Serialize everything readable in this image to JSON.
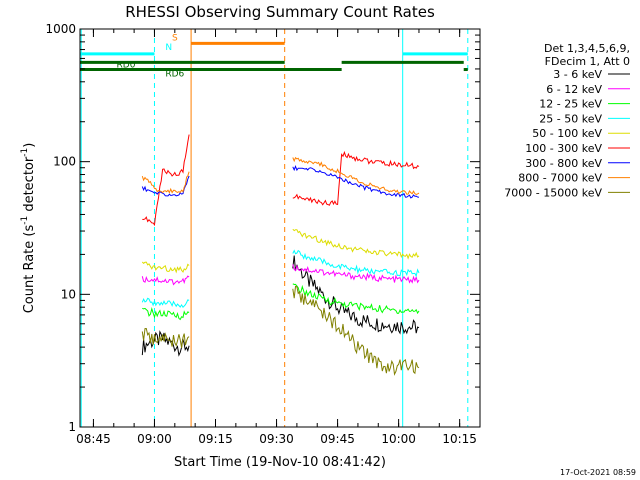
{
  "chart_data": {
    "type": "line",
    "title": "RHESSI Observing Summary Count Rates",
    "xlabel": "Start Time (19-Nov-10 08:41:42)",
    "ylabel_main": "Count Rate (s",
    "ylabel_sup1": "-1",
    "ylabel_mid": " detector",
    "ylabel_sup2": "-1",
    "ylabel_end": ")",
    "y_scale": "log",
    "ylim": [
      1,
      1000
    ],
    "xlim": [
      "08:41:42",
      "10:20:00"
    ],
    "x_ticks": [
      "08:45",
      "09:00",
      "09:15",
      "09:30",
      "09:45",
      "10:00",
      "10:15"
    ],
    "y_ticks": [
      "1",
      "10",
      "100",
      "1000"
    ],
    "legend_header": [
      "Det 1,3,4,5,6,9,",
      "FDecim 1, Att 0"
    ],
    "legend_position": "right",
    "timestamp": "17-Oct-2021 08:59",
    "series": [
      {
        "name": "3 - 6 keV",
        "color": "#000000",
        "points": [
          [
            "08:57:00",
            4.0
          ],
          [
            "08:59:00",
            4.4
          ],
          [
            "09:02:00",
            4.6
          ],
          [
            "09:06:00",
            4.0
          ],
          [
            "09:08:30",
            4.1
          ],
          [
            "09:34:00",
            18.0
          ],
          [
            "09:38:00",
            12.5
          ],
          [
            "09:42:00",
            9.5
          ],
          [
            "09:46:00",
            7.5
          ],
          [
            "09:50:00",
            6.5
          ],
          [
            "09:55:00",
            6.0
          ],
          [
            "10:00:00",
            5.8
          ],
          [
            "10:05:00",
            5.6
          ]
        ]
      },
      {
        "name": "6 - 12 keV",
        "color": "#ff00ff",
        "points": [
          [
            "08:57:00",
            13.0
          ],
          [
            "09:00:00",
            13.0
          ],
          [
            "09:04:00",
            12.5
          ],
          [
            "09:07:00",
            12.5
          ],
          [
            "09:08:30",
            13.5
          ],
          [
            "09:34:00",
            16.0
          ],
          [
            "09:40:00",
            15.0
          ],
          [
            "09:46:00",
            14.0
          ],
          [
            "09:52:00",
            13.5
          ],
          [
            "09:58:00",
            13.0
          ],
          [
            "10:05:00",
            12.8
          ]
        ]
      },
      {
        "name": "12 - 25 keV",
        "color": "#00ff00",
        "points": [
          [
            "08:57:00",
            7.5
          ],
          [
            "09:00:00",
            7.2
          ],
          [
            "09:04:00",
            7.0
          ],
          [
            "09:07:00",
            6.9
          ],
          [
            "09:08:30",
            7.3
          ],
          [
            "09:34:00",
            11.5
          ],
          [
            "09:40:00",
            9.5
          ],
          [
            "09:46:00",
            8.5
          ],
          [
            "09:52:00",
            8.0
          ],
          [
            "09:58:00",
            7.6
          ],
          [
            "10:05:00",
            7.5
          ]
        ]
      },
      {
        "name": "25 - 50 keV",
        "color": "#00ffff",
        "points": [
          [
            "08:57:00",
            9.0
          ],
          [
            "09:00:00",
            8.7
          ],
          [
            "09:04:00",
            8.4
          ],
          [
            "09:07:00",
            8.3
          ],
          [
            "09:08:30",
            9.0
          ],
          [
            "09:34:00",
            21.0
          ],
          [
            "09:40:00",
            18.0
          ],
          [
            "09:46:00",
            16.0
          ],
          [
            "09:52:00",
            15.0
          ],
          [
            "09:58:00",
            14.5
          ],
          [
            "10:05:00",
            14.5
          ]
        ]
      },
      {
        "name": "50 - 100 keV",
        "color": "#dddd00",
        "points": [
          [
            "08:57:00",
            17.0
          ],
          [
            "09:00:00",
            16.0
          ],
          [
            "09:04:00",
            15.5
          ],
          [
            "09:07:00",
            15.5
          ],
          [
            "09:08:30",
            16.5
          ],
          [
            "09:34:00",
            30.0
          ],
          [
            "09:40:00",
            26.0
          ],
          [
            "09:46:00",
            23.0
          ],
          [
            "09:52:00",
            21.0
          ],
          [
            "09:58:00",
            20.0
          ],
          [
            "10:05:00",
            19.5
          ]
        ]
      },
      {
        "name": "100 - 300 keV",
        "color": "#ff0000",
        "points": [
          [
            "08:57:00",
            38.0
          ],
          [
            "09:00:00",
            34.0
          ],
          [
            "09:02:00",
            86.0
          ],
          [
            "09:05:00",
            80.0
          ],
          [
            "09:07:00",
            84.0
          ],
          [
            "09:08:30",
            160.0
          ],
          [
            "09:34:00",
            55.0
          ],
          [
            "09:40:00",
            50.0
          ],
          [
            "09:45:00",
            48.0
          ],
          [
            "09:46:00",
            115.0
          ],
          [
            "09:50:00",
            105.0
          ],
          [
            "09:55:00",
            98.0
          ],
          [
            "10:00:00",
            95.0
          ],
          [
            "10:05:00",
            92.0
          ]
        ]
      },
      {
        "name": "300 - 800 keV",
        "color": "#0000ff",
        "points": [
          [
            "08:57:00",
            64.0
          ],
          [
            "09:00:00",
            58.0
          ],
          [
            "09:04:00",
            56.0
          ],
          [
            "09:07:00",
            57.0
          ],
          [
            "09:08:30",
            78.0
          ],
          [
            "09:34:00",
            90.0
          ],
          [
            "09:40:00",
            86.0
          ],
          [
            "09:46:00",
            74.0
          ],
          [
            "09:52:00",
            63.0
          ],
          [
            "09:58:00",
            57.0
          ],
          [
            "10:05:00",
            54.0
          ]
        ]
      },
      {
        "name": "800 - 7000 keV",
        "color": "#ff8000",
        "points": [
          [
            "08:57:00",
            76.0
          ],
          [
            "08:59:00",
            70.0
          ],
          [
            "09:01:00",
            60.0
          ],
          [
            "09:05:00",
            60.0
          ],
          [
            "09:07:00",
            61.0
          ],
          [
            "09:08:30",
            84.0
          ],
          [
            "09:34:00",
            105.0
          ],
          [
            "09:40:00",
            98.0
          ],
          [
            "09:46:00",
            82.0
          ],
          [
            "09:52:00",
            68.0
          ],
          [
            "09:58:00",
            60.0
          ],
          [
            "10:05:00",
            58.0
          ]
        ]
      },
      {
        "name": "7000 - 15000 keV",
        "color": "#808000",
        "points": [
          [
            "08:57:00",
            5.0
          ],
          [
            "09:00:00",
            4.6
          ],
          [
            "09:04:00",
            4.5
          ],
          [
            "09:07:00",
            4.5
          ],
          [
            "09:08:30",
            4.8
          ],
          [
            "09:34:00",
            10.5
          ],
          [
            "09:40:00",
            8.0
          ],
          [
            "09:44:00",
            6.2
          ],
          [
            "09:48:00",
            4.6
          ],
          [
            "09:52:00",
            3.5
          ],
          [
            "09:56:00",
            2.9
          ],
          [
            "10:05:00",
            2.8
          ]
        ]
      }
    ],
    "status_bars": [
      {
        "label": "N",
        "color": "#00ffff",
        "level": 650,
        "segments": [
          [
            "08:41:42",
            "09:00:00"
          ],
          [
            "10:01:00",
            "10:17:00"
          ]
        ]
      },
      {
        "label": "S",
        "color": "#ff8000",
        "level": 780,
        "segments": [
          [
            "09:09:00",
            "09:32:00"
          ]
        ]
      },
      {
        "label": "RD0",
        "color": "#006400",
        "level": 560,
        "segments": [
          [
            "08:41:42",
            "09:32:00"
          ],
          [
            "09:46:00",
            "10:16:00"
          ]
        ]
      },
      {
        "label": "RD6",
        "color": "#006400",
        "level": 495,
        "segments": [
          [
            "08:41:42",
            "09:46:00"
          ],
          [
            "10:16:00",
            "10:17:00"
          ]
        ]
      }
    ],
    "vertical_markers": [
      {
        "time": "08:42:00",
        "color": "#00ffff",
        "style": "solid"
      },
      {
        "time": "09:00:00",
        "color": "#00ffff",
        "style": "dashed"
      },
      {
        "time": "09:09:00",
        "color": "#ff8000",
        "style": "solid"
      },
      {
        "time": "09:32:00",
        "color": "#ff8000",
        "style": "dashed"
      },
      {
        "time": "10:01:00",
        "color": "#00ffff",
        "style": "solid"
      },
      {
        "time": "10:17:00",
        "color": "#00ffff",
        "style": "dashed"
      }
    ]
  }
}
